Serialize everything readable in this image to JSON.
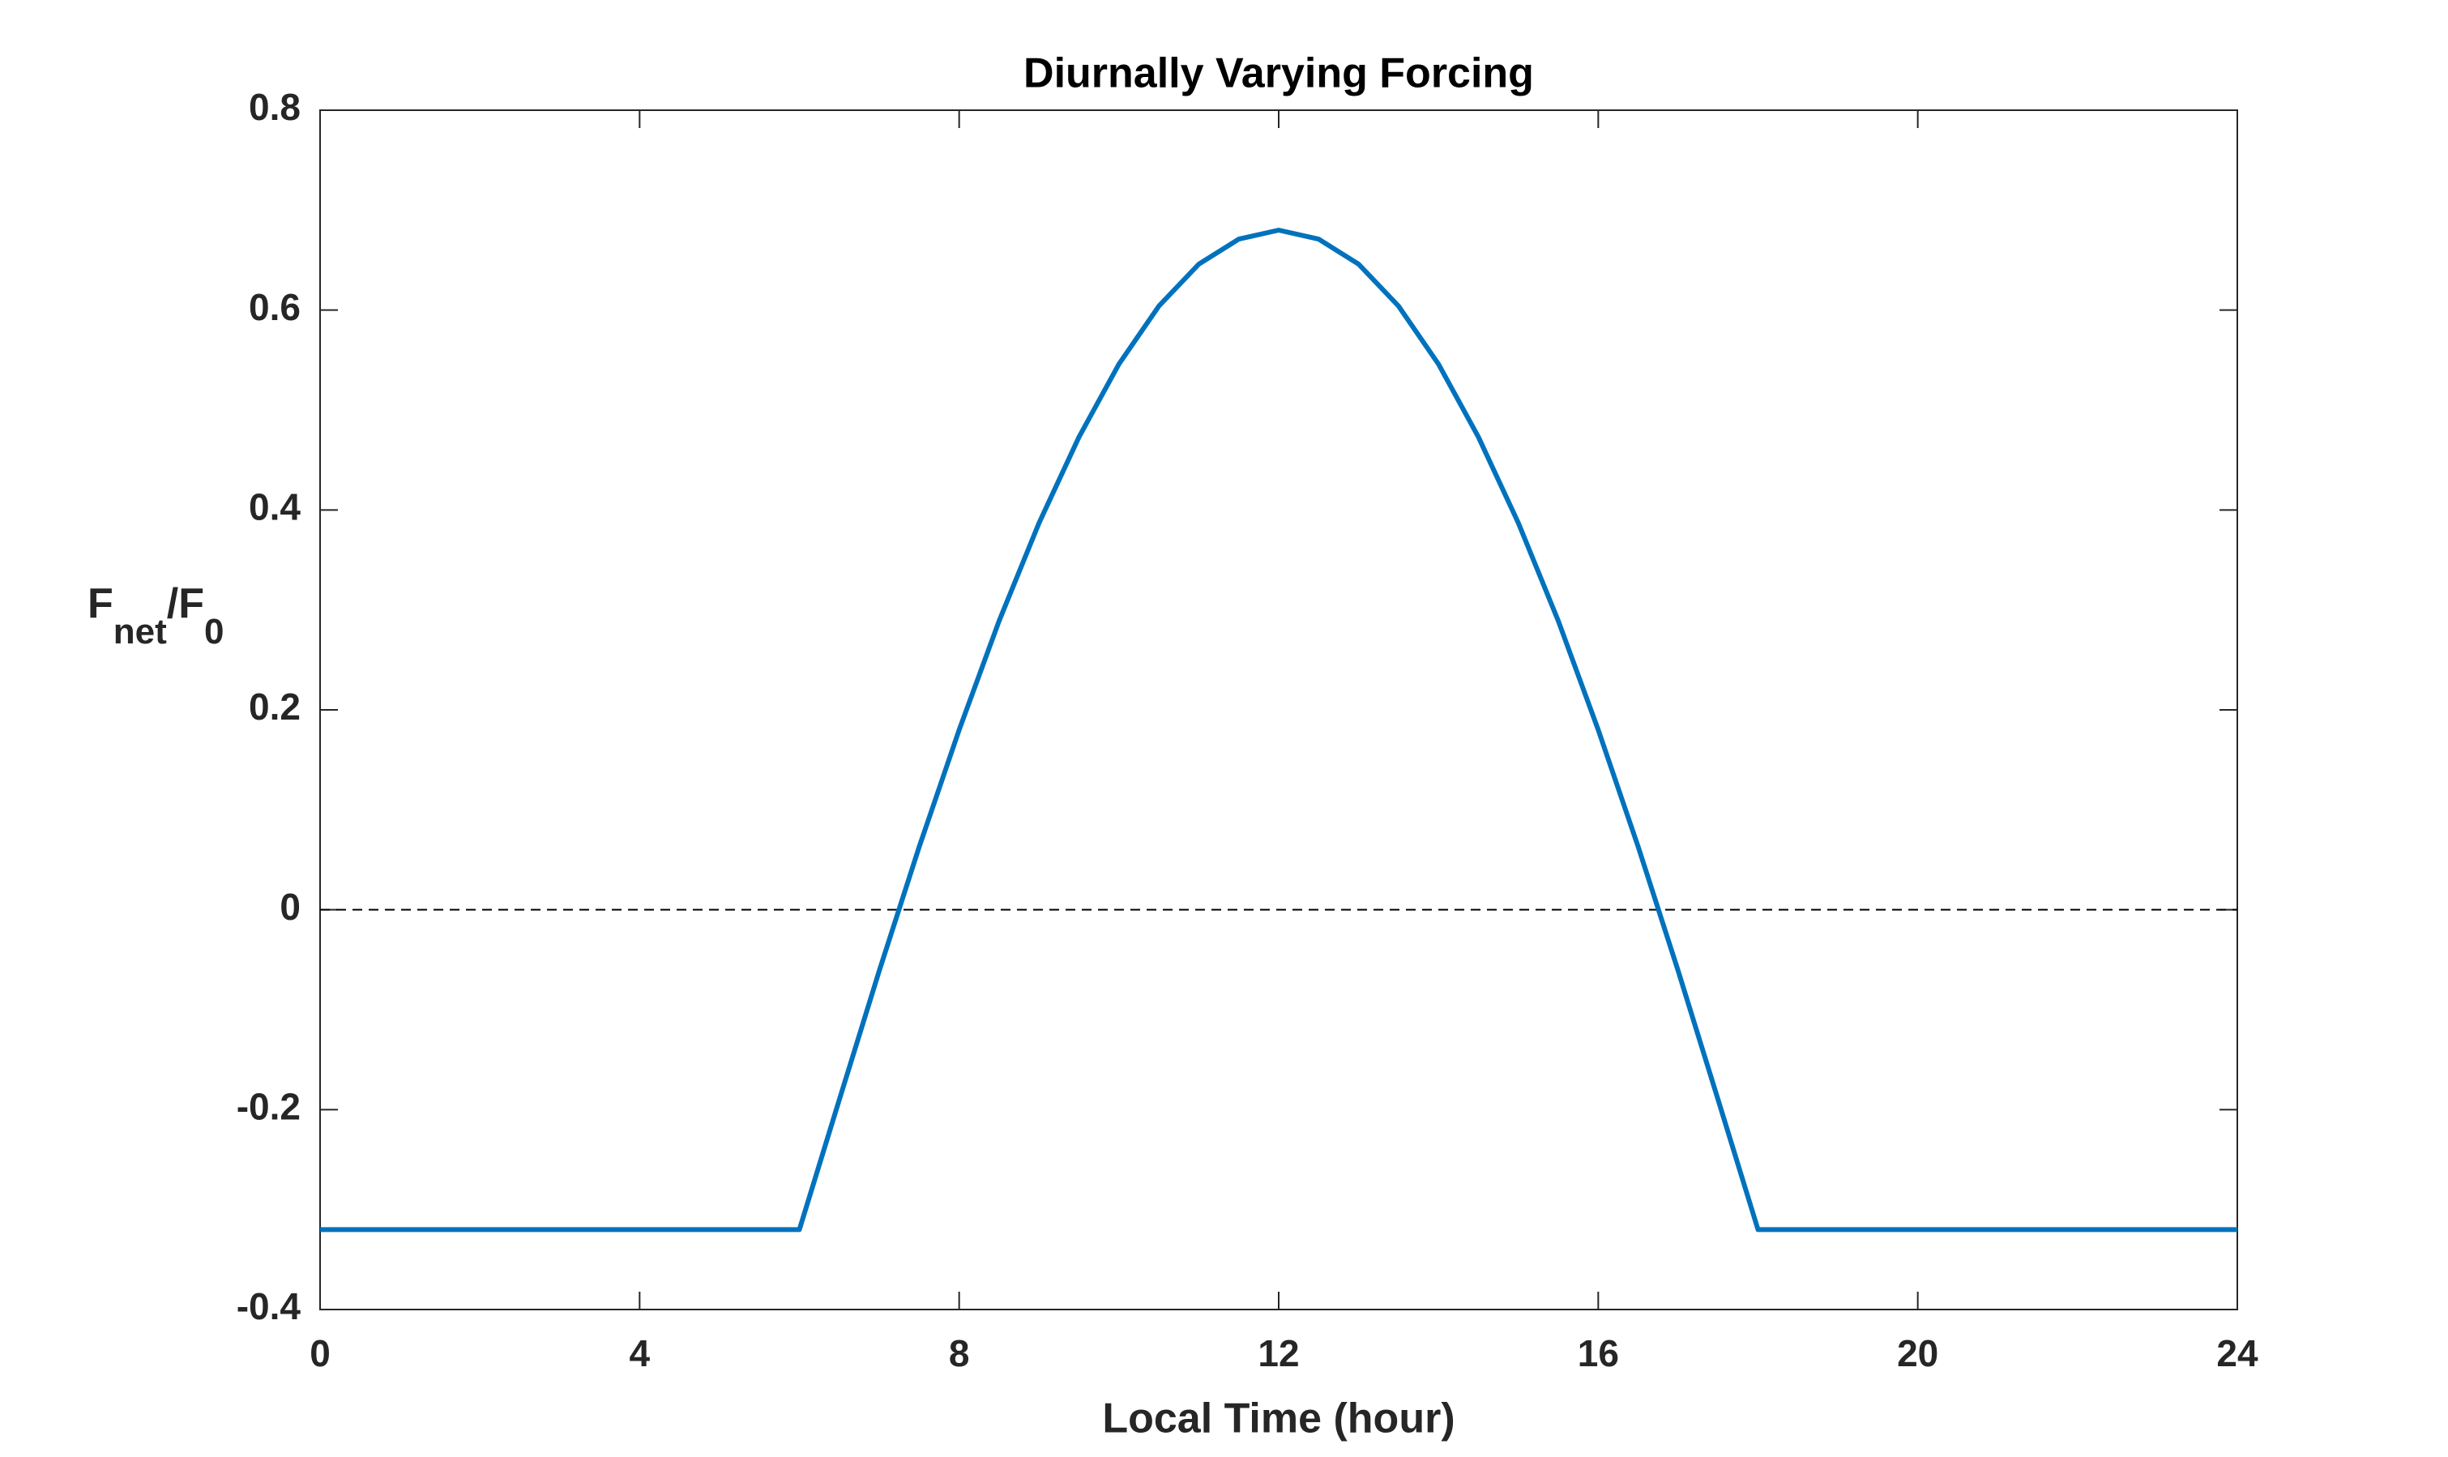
{
  "chart_data": {
    "type": "line",
    "title": "Diurnally Varying Forcing",
    "xlabel": "Local Time (hour)",
    "ylabel": {
      "main": "F",
      "sub": "net",
      "main2": "/F",
      "sub2": "0"
    },
    "x": [
      0,
      6,
      6.5,
      7,
      7.5,
      8,
      8.5,
      9,
      9.5,
      10,
      10.5,
      11,
      11.5,
      12,
      12.5,
      13,
      13.5,
      14,
      14.5,
      15,
      15.5,
      16,
      16.5,
      17,
      17.5,
      18,
      24
    ],
    "series": [
      {
        "name": "Fnet/F0",
        "color": "#0072bd",
        "values": [
          -0.32,
          -0.32,
          -0.19,
          -0.061,
          0.063,
          0.18,
          0.289,
          0.387,
          0.473,
          0.546,
          0.604,
          0.646,
          0.671,
          0.68,
          0.671,
          0.646,
          0.604,
          0.546,
          0.473,
          0.387,
          0.289,
          0.18,
          0.063,
          -0.061,
          -0.19,
          -0.32,
          -0.32
        ]
      }
    ],
    "reference_lines": [
      0
    ],
    "xlim": [
      0,
      24
    ],
    "xticks": [
      0,
      4,
      8,
      12,
      16,
      20,
      24
    ],
    "ylim": [
      -0.4,
      0.8
    ],
    "yticks": [
      -0.4,
      -0.2,
      0,
      0.2,
      0.4,
      0.6,
      0.8
    ],
    "grid": false
  }
}
